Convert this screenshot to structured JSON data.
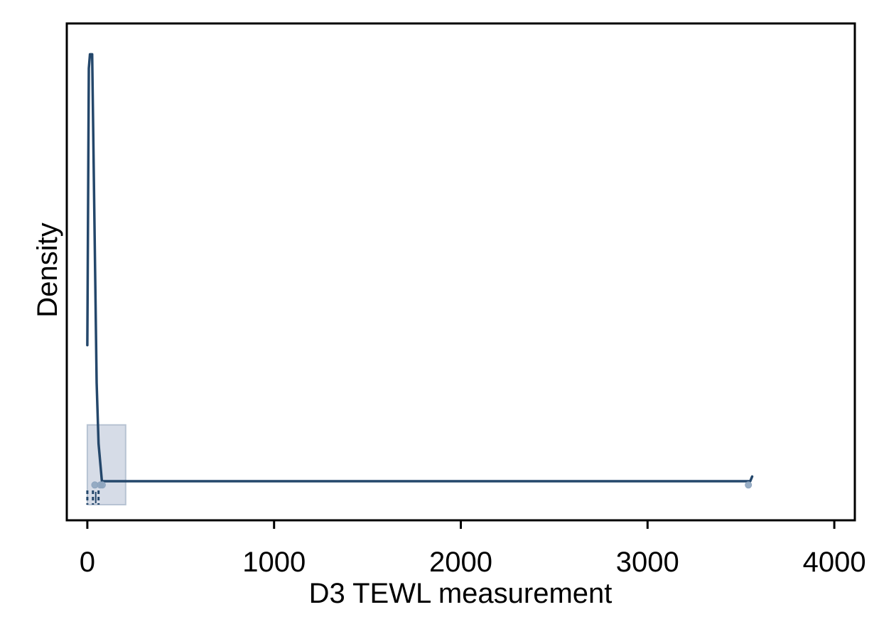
{
  "chart_data": {
    "type": "histogram",
    "xlabel": "D3 TEWL measurement",
    "ylabel": "Density",
    "xlim": [
      -110,
      4110
    ],
    "x_ticks": [
      0,
      1000,
      2000,
      3000,
      4000
    ],
    "x_tick_labels": [
      "0",
      "1000",
      "2000",
      "3000",
      "4000"
    ],
    "y_ticks_shown": false,
    "ylim": [
      0,
      1
    ],
    "grid": false,
    "histogram_bars": [
      {
        "x_start": 0,
        "x_end": 205,
        "density": 0.17
      }
    ],
    "density_curve": [
      [
        0,
        0.34
      ],
      [
        8,
        0.93
      ],
      [
        14,
        0.96
      ],
      [
        18,
        0.96
      ],
      [
        26,
        0.96
      ],
      [
        50,
        0.26
      ],
      [
        60,
        0.13
      ],
      [
        78,
        0.05
      ],
      [
        3550,
        0.05
      ],
      [
        3560,
        0.06
      ]
    ],
    "box": {
      "whisker_low": 0,
      "q1": 30,
      "median": 45,
      "q3": 60,
      "whisker_high": 75
    },
    "points": [
      {
        "x": 40,
        "y": 0.045
      },
      {
        "x": 70,
        "y": 0.045
      },
      {
        "x": 80,
        "y": 0.045
      },
      {
        "x": 3540,
        "y": 0.045
      }
    ],
    "colors": {
      "curve": "#24476b",
      "bar_fill": "#d6dce7",
      "bar_stroke": "#b7c3d3",
      "points": "#8ea5bf"
    }
  }
}
